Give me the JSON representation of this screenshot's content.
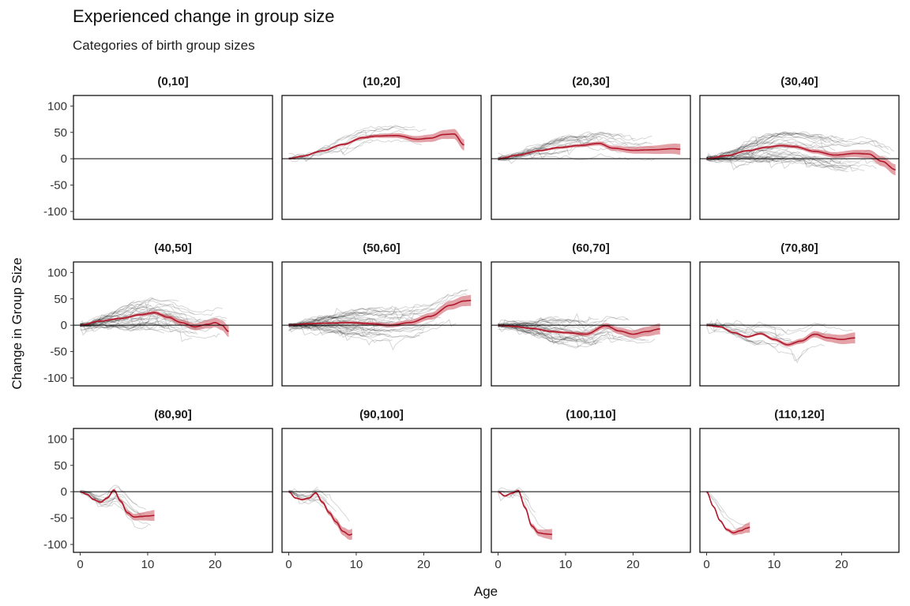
{
  "chart_data": {
    "type": "line",
    "title": "Experienced change in group size",
    "subtitle": "Categories of birth group sizes",
    "xlabel": "Age",
    "ylabel": "Change in Group Size",
    "xlim": [
      -1,
      28.5
    ],
    "ylim": [
      -115,
      120
    ],
    "xticks": [
      0,
      10,
      20
    ],
    "yticks": [
      100,
      50,
      0,
      -50,
      -100
    ],
    "grid": false,
    "reference_line_y": 0,
    "colors": {
      "smooth": "#b2182b",
      "ribbon": "#cc5560",
      "individual": "#000000",
      "zero_line": "#000000"
    },
    "panels": [
      {
        "label": "(0,10]",
        "max_age": 0,
        "n_traces": 0,
        "spread": 0,
        "smooth": []
      },
      {
        "label": "(10,20]",
        "max_age": 26,
        "n_traces": 9,
        "spread": 22,
        "smooth": [
          [
            0,
            0
          ],
          [
            2,
            5
          ],
          [
            5,
            15
          ],
          [
            8,
            27
          ],
          [
            11,
            40
          ],
          [
            13,
            43
          ],
          [
            16,
            44
          ],
          [
            19,
            37
          ],
          [
            21,
            39
          ],
          [
            23,
            46
          ],
          [
            24.5,
            47
          ],
          [
            26,
            26
          ]
        ]
      },
      {
        "label": "(20,30]",
        "max_age": 27,
        "n_traces": 20,
        "spread": 22,
        "smooth": [
          [
            0,
            0
          ],
          [
            3,
            7
          ],
          [
            6,
            15
          ],
          [
            9,
            21
          ],
          [
            12,
            25
          ],
          [
            15,
            29
          ],
          [
            17,
            20
          ],
          [
            20,
            16
          ],
          [
            23,
            17
          ],
          [
            26,
            19
          ],
          [
            27,
            18
          ]
        ]
      },
      {
        "label": "(30,40]",
        "max_age": 28,
        "n_traces": 38,
        "spread": 28,
        "smooth": [
          [
            0,
            0
          ],
          [
            3,
            6
          ],
          [
            6,
            15
          ],
          [
            9,
            22
          ],
          [
            11,
            25
          ],
          [
            13,
            23
          ],
          [
            16,
            14
          ],
          [
            19,
            7
          ],
          [
            22,
            10
          ],
          [
            24,
            9
          ],
          [
            26,
            -5
          ],
          [
            28,
            -21
          ]
        ]
      },
      {
        "label": "(40,50]",
        "max_age": 22,
        "n_traces": 38,
        "spread": 32,
        "smooth": [
          [
            0,
            0
          ],
          [
            3,
            8
          ],
          [
            6,
            13
          ],
          [
            9,
            20
          ],
          [
            11,
            24
          ],
          [
            13,
            15
          ],
          [
            15,
            5
          ],
          [
            17,
            -3
          ],
          [
            19,
            2
          ],
          [
            20,
            5
          ],
          [
            21,
            0
          ],
          [
            22,
            -12
          ]
        ]
      },
      {
        "label": "(50,60]",
        "max_age": 27,
        "n_traces": 42,
        "spread": 28,
        "smooth": [
          [
            0,
            0
          ],
          [
            3,
            3
          ],
          [
            6,
            4
          ],
          [
            9,
            5
          ],
          [
            12,
            3
          ],
          [
            15,
            0
          ],
          [
            18,
            5
          ],
          [
            21,
            17
          ],
          [
            24,
            38
          ],
          [
            26,
            46
          ],
          [
            27,
            47
          ]
        ]
      },
      {
        "label": "(60,70]",
        "max_age": 24,
        "n_traces": 36,
        "spread": 26,
        "smooth": [
          [
            0,
            0
          ],
          [
            2,
            -2
          ],
          [
            5,
            -6
          ],
          [
            8,
            -12
          ],
          [
            10,
            -14
          ],
          [
            13,
            -17
          ],
          [
            16,
            -1
          ],
          [
            18,
            -11
          ],
          [
            20,
            -17
          ],
          [
            22,
            -12
          ],
          [
            24,
            -7
          ]
        ]
      },
      {
        "label": "(70,80]",
        "max_age": 22,
        "n_traces": 14,
        "spread": 22,
        "smooth": [
          [
            0,
            0
          ],
          [
            2,
            -3
          ],
          [
            4,
            -14
          ],
          [
            6,
            -22
          ],
          [
            8,
            -16
          ],
          [
            10,
            -27
          ],
          [
            12,
            -37
          ],
          [
            14,
            -30
          ],
          [
            16,
            -17
          ],
          [
            18,
            -24
          ],
          [
            20,
            -27
          ],
          [
            22,
            -24
          ]
        ]
      },
      {
        "label": "(80,90]",
        "max_age": 11,
        "n_traces": 14,
        "spread": 20,
        "smooth": [
          [
            0,
            0
          ],
          [
            1,
            -5
          ],
          [
            2,
            -15
          ],
          [
            3,
            -20
          ],
          [
            4,
            -12
          ],
          [
            5,
            3
          ],
          [
            6,
            -18
          ],
          [
            7,
            -40
          ],
          [
            8,
            -48
          ],
          [
            9,
            -47
          ],
          [
            10,
            -46
          ],
          [
            11,
            -45
          ]
        ]
      },
      {
        "label": "(90,100]",
        "max_age": 9.5,
        "n_traces": 10,
        "spread": 18,
        "smooth": [
          [
            0,
            0
          ],
          [
            1,
            -12
          ],
          [
            2,
            -15
          ],
          [
            3,
            -12
          ],
          [
            4,
            -2
          ],
          [
            5,
            -20
          ],
          [
            6,
            -40
          ],
          [
            7,
            -57
          ],
          [
            8,
            -75
          ],
          [
            9,
            -82
          ],
          [
            9.5,
            -80
          ]
        ]
      },
      {
        "label": "(100,110]",
        "max_age": 8,
        "n_traces": 6,
        "spread": 14,
        "smooth": [
          [
            0,
            0
          ],
          [
            1,
            -8
          ],
          [
            2,
            -3
          ],
          [
            3,
            2
          ],
          [
            4,
            -30
          ],
          [
            5,
            -65
          ],
          [
            6,
            -78
          ],
          [
            7,
            -80
          ],
          [
            8,
            -81
          ]
        ]
      },
      {
        "label": "(110,120]",
        "max_age": 6.5,
        "n_traces": 3,
        "spread": 10,
        "smooth": [
          [
            0,
            0
          ],
          [
            1,
            -28
          ],
          [
            2,
            -55
          ],
          [
            3,
            -72
          ],
          [
            4,
            -78
          ],
          [
            5,
            -74
          ],
          [
            6,
            -69
          ],
          [
            6.5,
            -67
          ]
        ]
      }
    ]
  }
}
